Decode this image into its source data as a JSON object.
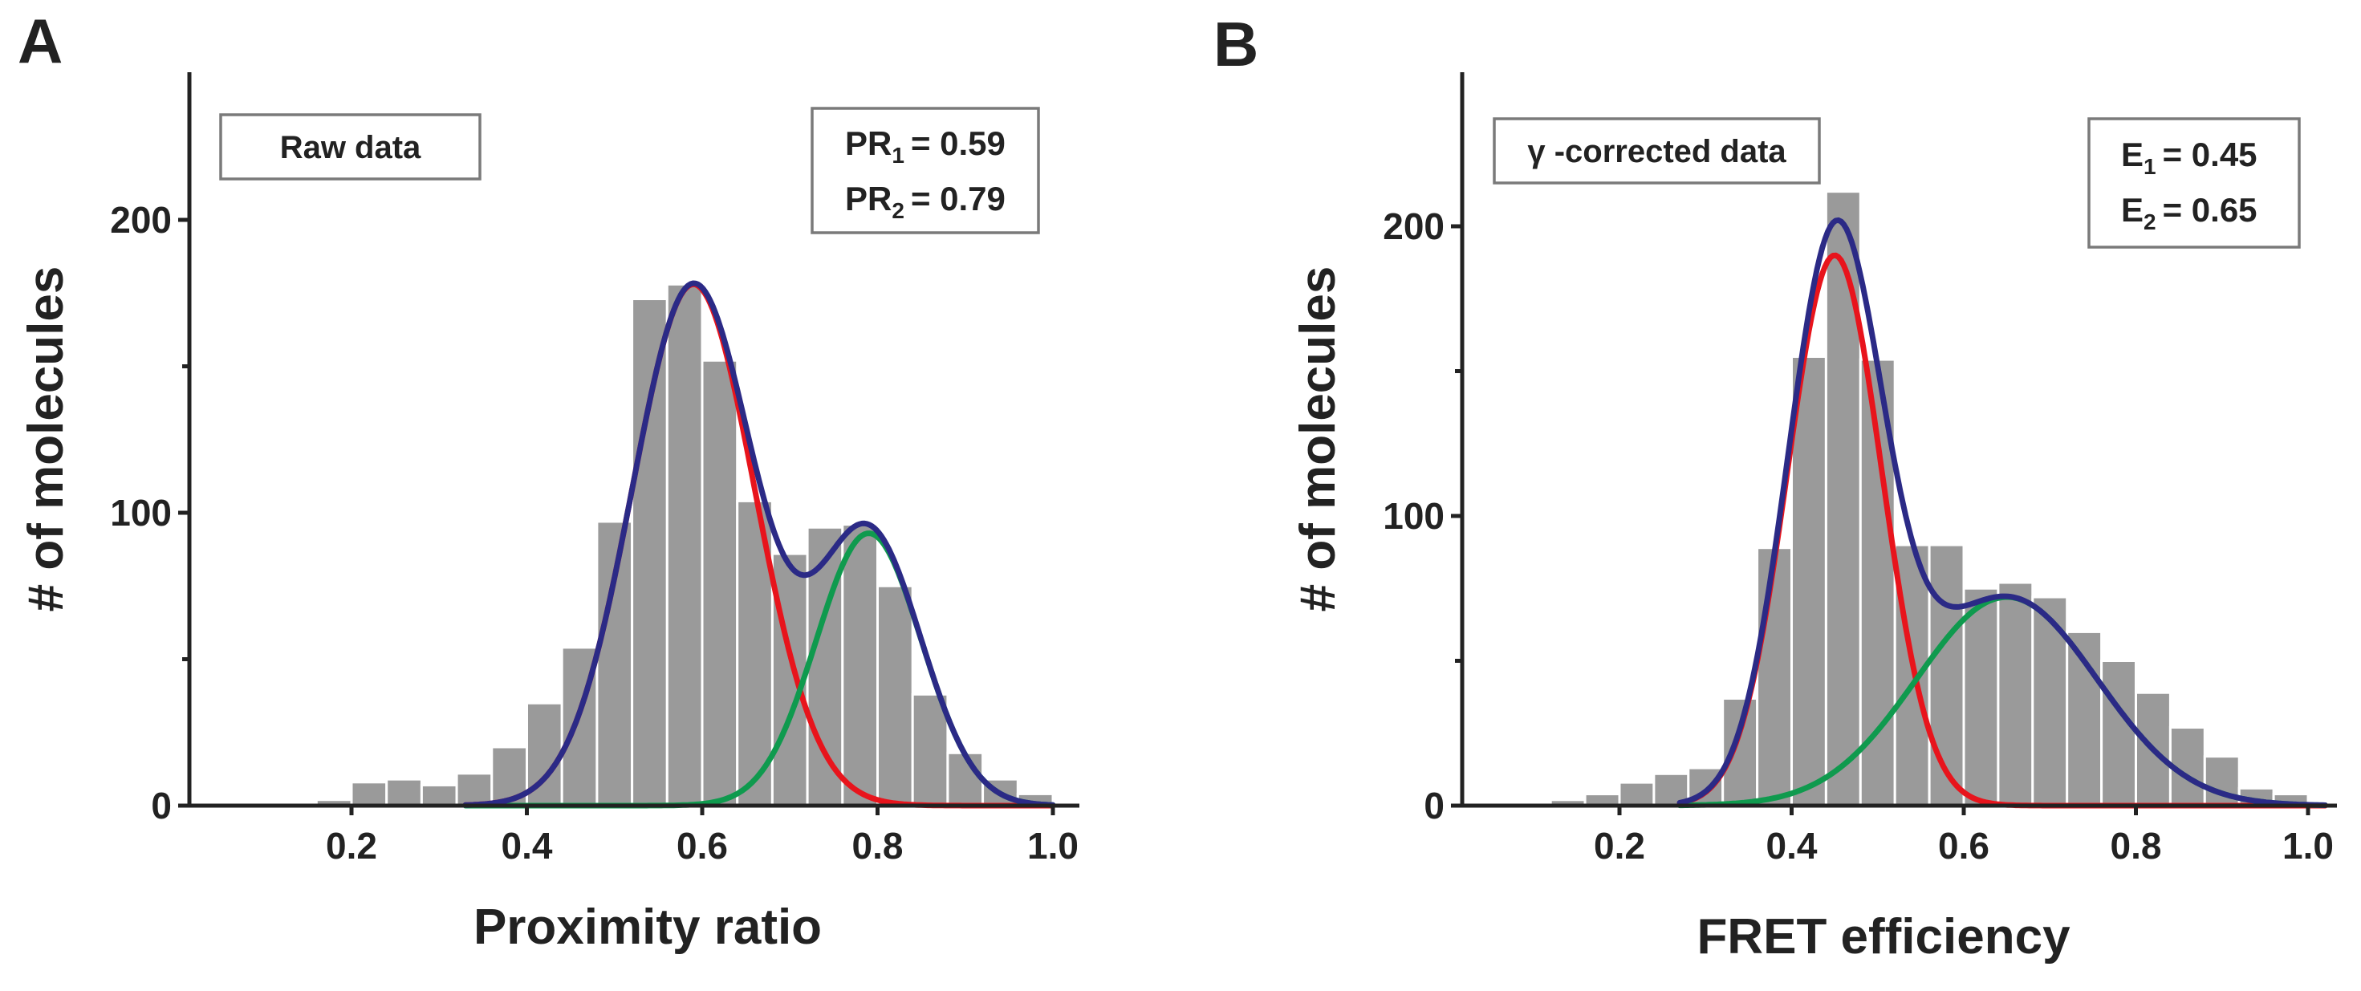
{
  "chart_data": [
    {
      "panel_letter": "A",
      "type": "bar",
      "xlabel": "Proximity ratio",
      "ylabel": "# of molecules",
      "xlim": [
        0.05,
        1.02
      ],
      "ylim": [
        0,
        250
      ],
      "x_ticks": [
        0.2,
        0.4,
        0.6,
        0.8,
        1.0
      ],
      "x_tick_labels": [
        "0.2",
        "0.4",
        "0.6",
        "0.8",
        "1.0"
      ],
      "y_ticks": [
        0,
        100,
        200
      ],
      "y_tick_labels": [
        "0",
        "100",
        "200"
      ],
      "y_minor_ticks": [
        50,
        150
      ],
      "bin_width": 0.04,
      "bins": [
        {
          "x": 0.14,
          "value": 1
        },
        {
          "x": 0.18,
          "value": 2
        },
        {
          "x": 0.22,
          "value": 8
        },
        {
          "x": 0.26,
          "value": 9
        },
        {
          "x": 0.3,
          "value": 7
        },
        {
          "x": 0.34,
          "value": 11
        },
        {
          "x": 0.38,
          "value": 20
        },
        {
          "x": 0.42,
          "value": 35
        },
        {
          "x": 0.46,
          "value": 54
        },
        {
          "x": 0.5,
          "value": 97
        },
        {
          "x": 0.54,
          "value": 173
        },
        {
          "x": 0.58,
          "value": 178
        },
        {
          "x": 0.62,
          "value": 152
        },
        {
          "x": 0.66,
          "value": 104
        },
        {
          "x": 0.7,
          "value": 86
        },
        {
          "x": 0.74,
          "value": 95
        },
        {
          "x": 0.78,
          "value": 96
        },
        {
          "x": 0.82,
          "value": 75
        },
        {
          "x": 0.86,
          "value": 38
        },
        {
          "x": 0.9,
          "value": 18
        },
        {
          "x": 0.94,
          "value": 9
        },
        {
          "x": 0.98,
          "value": 4
        }
      ],
      "fits": [
        {
          "color": "#e8141c",
          "center": 0.59,
          "width": 0.07,
          "amplitude": 178
        },
        {
          "color": "#0f9a4e",
          "center": 0.79,
          "width": 0.06,
          "amplitude": 93
        },
        {
          "color": "#2b2a86",
          "sum": true
        }
      ],
      "fit_range": [
        0.33,
        1.0
      ],
      "box_text": "Raw data",
      "annotation": [
        {
          "label": "PR",
          "subscript": "1",
          "value": "= 0.59"
        },
        {
          "label": "PR",
          "subscript": "2",
          "value": "= 0.79"
        }
      ]
    },
    {
      "panel_letter": "B",
      "type": "bar",
      "xlabel": "FRET efficiency",
      "ylabel": "# of molecules",
      "xlim": [
        0.05,
        1.02
      ],
      "ylim": [
        0,
        250
      ],
      "x_ticks": [
        0.2,
        0.4,
        0.6,
        0.8,
        1.0
      ],
      "x_tick_labels": [
        "0.2",
        "0.4",
        "0.6",
        "0.8",
        "1.0"
      ],
      "y_ticks": [
        0,
        100,
        200
      ],
      "y_tick_labels": [
        "0",
        "100",
        "200"
      ],
      "y_minor_ticks": [
        50,
        150
      ],
      "bin_width": 0.04,
      "bins": [
        {
          "x": 0.14,
          "value": 2
        },
        {
          "x": 0.18,
          "value": 4
        },
        {
          "x": 0.22,
          "value": 8
        },
        {
          "x": 0.26,
          "value": 11
        },
        {
          "x": 0.3,
          "value": 13
        },
        {
          "x": 0.34,
          "value": 37
        },
        {
          "x": 0.38,
          "value": 89
        },
        {
          "x": 0.42,
          "value": 155
        },
        {
          "x": 0.46,
          "value": 212
        },
        {
          "x": 0.5,
          "value": 154
        },
        {
          "x": 0.54,
          "value": 90
        },
        {
          "x": 0.58,
          "value": 90
        },
        {
          "x": 0.62,
          "value": 75
        },
        {
          "x": 0.66,
          "value": 77
        },
        {
          "x": 0.7,
          "value": 72
        },
        {
          "x": 0.74,
          "value": 60
        },
        {
          "x": 0.78,
          "value": 50
        },
        {
          "x": 0.82,
          "value": 39
        },
        {
          "x": 0.86,
          "value": 27
        },
        {
          "x": 0.9,
          "value": 17
        },
        {
          "x": 0.94,
          "value": 6
        },
        {
          "x": 0.98,
          "value": 4
        }
      ],
      "fits": [
        {
          "color": "#e8141c",
          "center": 0.45,
          "width": 0.055,
          "amplitude": 190
        },
        {
          "color": "#0f9a4e",
          "center": 0.65,
          "width": 0.105,
          "amplitude": 72
        },
        {
          "color": "#2b2a86",
          "sum": true
        }
      ],
      "fit_range": [
        0.27,
        1.02
      ],
      "box_text": "γ -corrected data",
      "annotation": [
        {
          "label": "E",
          "subscript": "1",
          "value": "= 0.45"
        },
        {
          "label": "E",
          "subscript": "2",
          "value": "= 0.65"
        }
      ]
    }
  ]
}
